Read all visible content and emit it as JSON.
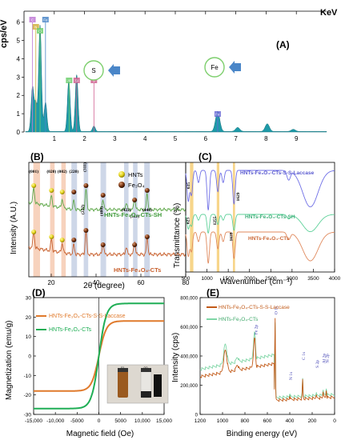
{
  "chart_data": [
    {
      "panel": "(A)",
      "type": "area",
      "ylabel": "cps/eV",
      "xlabel": "KeV",
      "xlim": [
        0,
        10
      ],
      "xticks": [
        "1",
        "2",
        "3",
        "4",
        "5",
        "6",
        "7",
        "8",
        "9"
      ],
      "ylim": [
        0,
        6.6
      ],
      "yticks": [
        "0",
        "1",
        "2",
        "3",
        "4",
        "5",
        "6"
      ],
      "fill_color": "#1e9aa8",
      "peaks": [
        {
          "x": 0.28,
          "y": 2.4
        },
        {
          "x": 0.39,
          "y": 1.5
        },
        {
          "x": 0.53,
          "y": 5.8
        },
        {
          "x": 0.71,
          "y": 1.6
        },
        {
          "x": 1.48,
          "y": 2.8
        },
        {
          "x": 1.74,
          "y": 3.1
        },
        {
          "x": 2.31,
          "y": 0.3
        },
        {
          "x": 6.4,
          "y": 1.1
        },
        {
          "x": 7.06,
          "y": 0.22
        },
        {
          "x": 8.04,
          "y": 0.42
        },
        {
          "x": 8.9,
          "y": 0.12
        }
      ],
      "markers": [
        {
          "label": "C",
          "x": 0.28
        },
        {
          "label": "N",
          "x": 0.39
        },
        {
          "label": "O",
          "x": 0.53
        },
        {
          "label": "Fe",
          "x": 0.71
        },
        {
          "label": "Al",
          "x": 1.49
        },
        {
          "label": "Si",
          "x": 1.74
        },
        {
          "label": "S",
          "x": 2.31
        },
        {
          "label": "Fe",
          "x": 6.4
        }
      ],
      "callouts": [
        "S",
        "Fe"
      ]
    },
    {
      "panel": "(B)",
      "type": "line",
      "xlabel": "2θ (degree)",
      "ylabel": "Intensity (A.U.)",
      "xlim": [
        10,
        80
      ],
      "xticks": [
        "20",
        "40",
        "60",
        "80"
      ],
      "series": [
        {
          "name": "HNTs-Fe₃O₄-CTs-SH",
          "color": "#5fa84a"
        },
        {
          "name": "HNTs-Fe₃O₄-CTs",
          "color": "#c8602d"
        }
      ],
      "legend": [
        "HNTs",
        "Fe₃O₄"
      ],
      "peak_labels": [
        "(001)",
        "(020)",
        "(002)",
        "(220)",
        "(311)",
        "(222)",
        "(400)",
        "(422)",
        "(511)",
        "(440)"
      ]
    },
    {
      "panel": "(C)",
      "type": "line",
      "xlabel": "Wavenumber (cm⁻¹)",
      "ylabel": "Transmittance (%)",
      "xlim": [
        500,
        4000
      ],
      "xticks": [
        "500",
        "1000",
        "1500",
        "2000",
        "2500",
        "3000",
        "3500",
        "4000"
      ],
      "series": [
        {
          "name": "HNTs-Fe₃O₄-CTs-S-S-Laccase",
          "color": "#6f6fe6"
        },
        {
          "name": "HNTs-Fe₃O₄-CTs-SH",
          "color": "#5fd19a"
        },
        {
          "name": "HNTs-Fe₃O₄-CTs",
          "color": "#e08a5e"
        }
      ],
      "band_labels": [
        "635",
        "623",
        "1255",
        "1629",
        "1639"
      ]
    },
    {
      "panel": "(D)",
      "type": "line",
      "xlabel": "Magnetic field (Oe)",
      "ylabel": "Magnetization (emu/g)",
      "xlim": [
        -15000,
        15000
      ],
      "xticks": [
        "-15,000",
        "-10,000",
        "-5000",
        "0",
        "5000",
        "10,000",
        "15,000"
      ],
      "ylim": [
        -30,
        30
      ],
      "yticks": [
        "-30",
        "-20",
        "-10",
        "0",
        "10",
        "20",
        "30"
      ],
      "series": [
        {
          "name": "HNTs-Fe₃O₄-CTs-S-S-Laccase",
          "color": "#e07a2c",
          "ms": 18
        },
        {
          "name": "HNTs-Fe₃O₄-CTs",
          "color": "#1fae55",
          "ms": 27
        }
      ],
      "inset_labels": [
        "(i)",
        "(ii)"
      ]
    },
    {
      "panel": "(E)",
      "type": "line",
      "xlabel": "Binding energy (eV)",
      "ylabel": "Intensity (cps)",
      "xlim": [
        1200,
        0
      ],
      "xticks": [
        "1200",
        "1000",
        "800",
        "600",
        "400",
        "200",
        "0"
      ],
      "ylim": [
        0,
        800000
      ],
      "yticks": [
        "0",
        "200,000",
        "400,000",
        "600,000",
        "800,000"
      ],
      "series": [
        {
          "name": "HNTs-Fe₃O₄-CTs-S-S-Laccase",
          "color": "#c25a18"
        },
        {
          "name": "HNTs-Fe₃O₄-CTs",
          "color": "#7fd6a6"
        }
      ],
      "peak_labels": [
        "Fe 2p",
        "O 1s",
        "N 1s",
        "C 1s",
        "S 2p",
        "Al 2p",
        "Si 2p"
      ]
    }
  ]
}
